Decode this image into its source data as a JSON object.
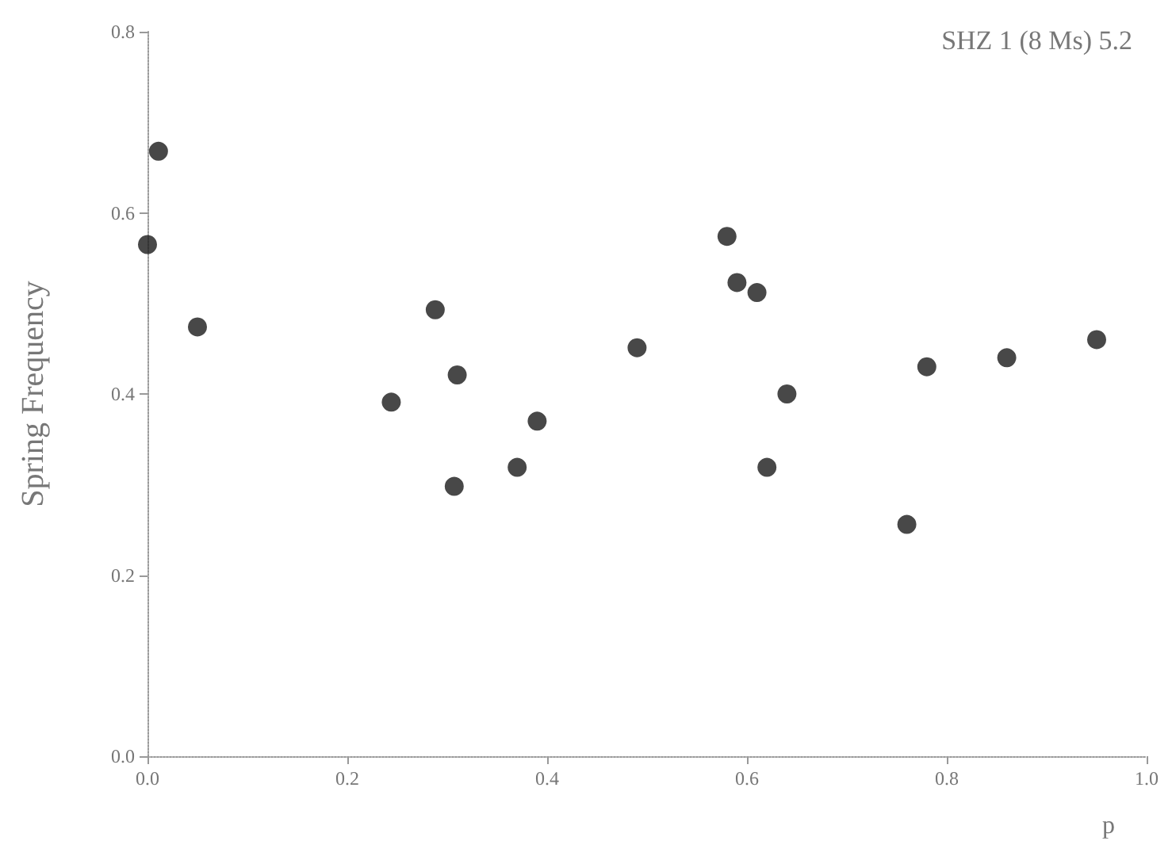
{
  "chart_data": {
    "type": "scatter",
    "title": "SHZ 1 (8 Ms) 5.2",
    "xlabel": "p",
    "ylabel": "Spring Frequency",
    "series": [
      {
        "color": "#1a1a1a",
        "x": [
          0.0,
          0.011,
          0.05,
          0.244,
          0.288,
          0.31,
          0.307,
          0.37,
          0.39,
          0.49,
          0.58,
          0.59,
          0.61,
          0.64,
          0.62,
          0.76,
          0.78,
          0.86,
          0.95
        ],
        "values": [
          0.565,
          0.668,
          0.474,
          0.391,
          0.493,
          0.421,
          0.298,
          0.319,
          0.37,
          0.451,
          0.574,
          0.523,
          0.512,
          0.4,
          0.319,
          0.256,
          0.43,
          0.44,
          0.46
        ]
      }
    ],
    "xlim": [
      0,
      1
    ],
    "xticks": [
      {
        "value": 0,
        "label": "0.0"
      },
      {
        "value": 0.2,
        "label": "0.2"
      },
      {
        "value": 0.4,
        "label": "0.4"
      },
      {
        "value": 0.6,
        "label": "0.6"
      },
      {
        "value": 0.8,
        "label": "0.8"
      },
      {
        "value": 1,
        "label": "1.0"
      }
    ],
    "ylim": [
      0,
      0.8
    ],
    "yticks": [
      {
        "value": 0,
        "label": "0.0"
      },
      {
        "value": 0.2,
        "label": "0.2"
      },
      {
        "value": 0.4,
        "label": "0.4"
      },
      {
        "value": 0.6,
        "label": "0.6"
      },
      {
        "value": 0.8,
        "label": "0.8"
      }
    ],
    "grid": false,
    "marker": "circle"
  }
}
